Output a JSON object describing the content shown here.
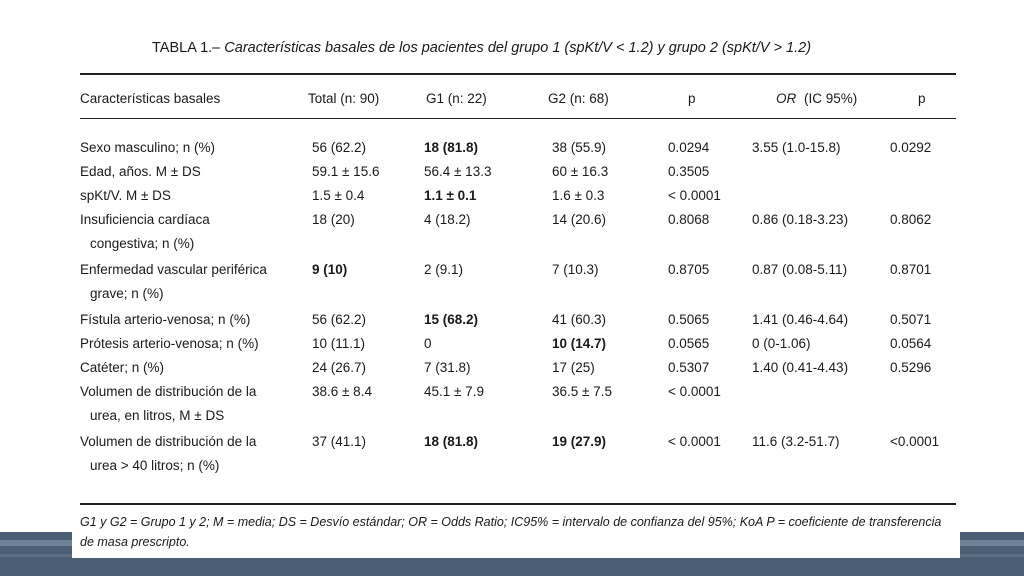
{
  "title": {
    "lead": "TABLA 1.–",
    "rest": "Características basales de los pacientes del grupo 1 (spKt/V < 1.2) y grupo 2 (spKt/V > 1.2)"
  },
  "columns": [
    "Características basales",
    "Total (n: 90)",
    "G1 (n: 22)",
    "G2 (n: 68)",
    "p",
    "OR",
    "(IC 95%)",
    "p"
  ],
  "rows": [
    {
      "label": [
        "Sexo masculino; n (%)"
      ],
      "total": "56 (62.2)",
      "g1": "18 (81.8)",
      "g2": "38 (55.9)",
      "p": "0.0294",
      "or": "3.55 (1.0-15.8)",
      "p2": "0.0292"
    },
    {
      "label": [
        "Edad, años. M ± DS"
      ],
      "total": "59.1 ± 15.6",
      "g1": "56.4 ± 13.3",
      "g2": "60 ± 16.3",
      "p": "0.3505",
      "or": "",
      "p2": ""
    },
    {
      "label": [
        "spKt/V. M ± DS"
      ],
      "total": "1.5 ± 0.4",
      "g1": "1.1 ± 0.1",
      "g2": "1.6 ± 0.3",
      "p": "< 0.0001",
      "or": "",
      "p2": ""
    },
    {
      "label": [
        "Insuficiencia cardíaca",
        "congestiva; n (%)"
      ],
      "total": "18 (20)",
      "g1": "4 (18.2)",
      "g2": "14 (20.6)",
      "p": "0.8068",
      "or": "0.86 (0.18-3.23)",
      "p2": "0.8062"
    },
    {
      "label": [
        "Enfermedad vascular periférica",
        "grave; n (%)"
      ],
      "total": "9 (10)",
      "g1": "2 (9.1)",
      "g2": "7 (10.3)",
      "p": "0.8705",
      "or": "0.87 (0.08-5.11)",
      "p2": "0.8701"
    },
    {
      "label": [
        "Fístula arterio-venosa; n (%)"
      ],
      "total": "56 (62.2)",
      "g1": "15 (68.2)",
      "g2": "41 (60.3)",
      "p": "0.5065",
      "or": "1.41 (0.46-4.64)",
      "p2": "0.5071"
    },
    {
      "label": [
        "Prótesis arterio-venosa; n (%)"
      ],
      "total": "10 (11.1)",
      "g1": "0",
      "g2": "10 (14.7)",
      "p": "0.0565",
      "or": "0 (0-1.06)",
      "p2": "0.0564"
    },
    {
      "label": [
        "Catéter; n (%)"
      ],
      "total": "24 (26.7)",
      "g1": "7 (31.8)",
      "g2": "17 (25)",
      "p": "0.5307",
      "or": "1.40 (0.41-4.43)",
      "p2": "0.5296"
    },
    {
      "label": [
        "Volumen de distribución de la",
        "urea, en litros, M ± DS"
      ],
      "total": "38.6 ± 8.4",
      "g1": "45.1 ± 7.9",
      "g2": "36.5 ± 7.5",
      "p": "< 0.0001",
      "or": "",
      "p2": ""
    },
    {
      "label": [
        "Volumen de distribución de la",
        "urea > 40 litros; n (%)"
      ],
      "total": "37 (41.1)",
      "g1": "18 (81.8)",
      "g2": "19 (27.9)",
      "p": "< 0.0001",
      "or": "11.6 (3.2-51.7)",
      "p2": "<0.0001"
    }
  ],
  "footnote": "G1 y G2 = Grupo 1 y 2; M = media; DS = Desvío estándar; OR = Odds Ratio; IC95% = intervalo de confianza del 95%; KoA P = coeficiente de transferencia de masa prescripto."
}
